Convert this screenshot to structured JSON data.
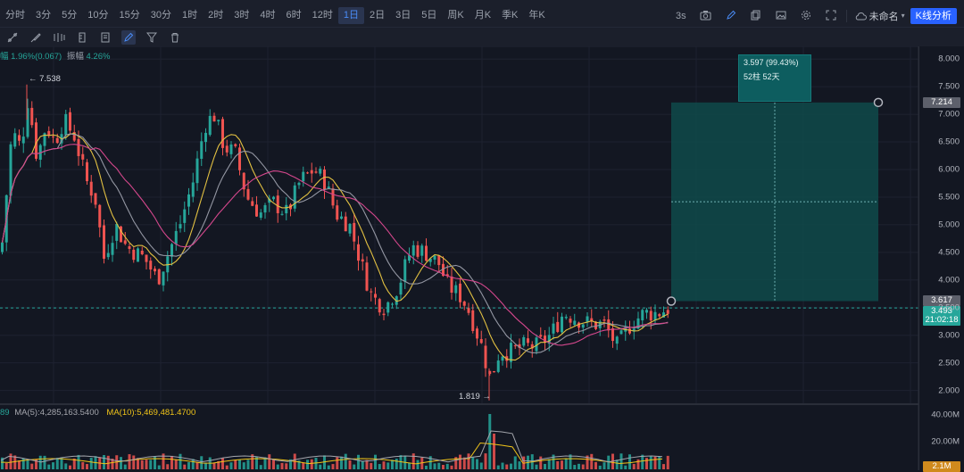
{
  "toolbar": {
    "timeframes": [
      "分时",
      "3分",
      "5分",
      "10分",
      "15分",
      "30分",
      "1时",
      "2时",
      "3时",
      "4时",
      "6时",
      "12时",
      "1日",
      "2日",
      "3日",
      "5日",
      "周K",
      "月K",
      "季K",
      "年K"
    ],
    "active_timeframe": "1日",
    "refresh_label": "3s",
    "layout_name": "未命名",
    "kline_button": "K线分析"
  },
  "infoline": {
    "change": "1.96%(0.067)",
    "amplitude_label": "振幅",
    "amplitude": "4.26%"
  },
  "volume_info": {
    "prefix": "89",
    "ma5_label": "MA(5):4,285,163.5400",
    "ma10_label": "MA(10):5,469,481.4700",
    "ma5_color": "#a4a6ad",
    "ma10_color": "#f0c419"
  },
  "price_axis": {
    "ticks": [
      "8.000",
      "7.500",
      "7.000",
      "6.500",
      "6.000",
      "5.500",
      "5.000",
      "4.500",
      "4.000",
      "3.500",
      "3.000",
      "2.500",
      "2.000"
    ],
    "target_badge": "7.214",
    "entry_badge": "3.617",
    "last_price": "3.493",
    "countdown": "21:02:18"
  },
  "volume_axis": {
    "ticks": [
      "40.00M",
      "20.00M"
    ],
    "current_badge": "2.1M"
  },
  "labels": {
    "high_label": "← 7.538",
    "low_label": "1.819 →"
  },
  "measure_tool": {
    "change_label": "3.597 (99.43%)",
    "bars_label": "52柱 52天",
    "entry_price": 3.617,
    "target_price": 7.214
  },
  "colors": {
    "up": "#26a69a",
    "down": "#ef5350",
    "ma_yellow": "#e3c142",
    "ma_grey": "#9497a3",
    "ma_pink": "#d4478c",
    "zone": "#0f4a4a"
  },
  "chart_data": {
    "type": "candlestick",
    "price_range": [
      1.8,
      8.1
    ],
    "extremes": {
      "high": 7.538,
      "low": 1.819
    },
    "last_price": 3.493,
    "ma_lines": [
      "yellow",
      "grey",
      "pink"
    ],
    "volume_axis_max": "40.00M",
    "grid": true,
    "legend": "none"
  }
}
